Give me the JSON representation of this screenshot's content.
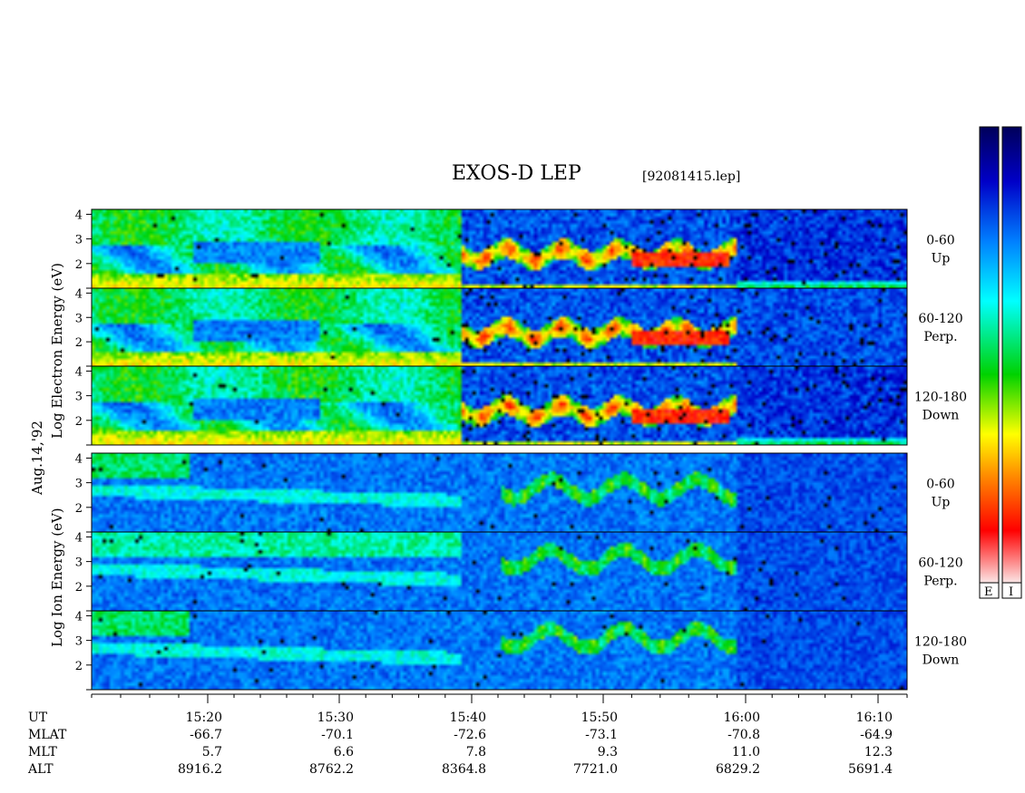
{
  "header": {
    "title": "EXOS-D LEP",
    "file": "[92081415.lep]"
  },
  "date_label": "Aug.14,'92",
  "ylabels": {
    "electron": "Log  Electron  Energy  (eV)",
    "ion": "Log  Ion  Energy  (eV)"
  },
  "colorbars": {
    "left_letter": "E",
    "right_letter": "I"
  },
  "chart_data": {
    "type": "heatmap",
    "title": "EXOS-D LEP",
    "subtitle": "[92081415.lep]",
    "x_axis": {
      "label": "UT",
      "ticks": [
        "15:20",
        "15:30",
        "15:40",
        "15:50",
        "16:00",
        "16:10"
      ],
      "range_minutes_utc": [
        "15:12",
        "16:12"
      ]
    },
    "y_axis": {
      "ticks": [
        "2",
        "3",
        "4"
      ],
      "range": [
        1,
        4.2
      ],
      "scale": "log energy (eV)"
    },
    "panels": [
      {
        "species": "Electron",
        "angle": "0-60",
        "direction": "Up"
      },
      {
        "species": "Electron",
        "angle": "60-120",
        "direction": "Perp."
      },
      {
        "species": "Electron",
        "angle": "120-180",
        "direction": "Down"
      },
      {
        "species": "Ion",
        "angle": "0-60",
        "direction": "Up"
      },
      {
        "species": "Ion",
        "angle": "60-120",
        "direction": "Perp."
      },
      {
        "species": "Ion",
        "angle": "120-180",
        "direction": "Down"
      }
    ],
    "ephemeris": [
      {
        "name": "MLAT",
        "values": [
          "-66.7",
          "-70.1",
          "-72.6",
          "-73.1",
          "-70.8",
          "-64.9"
        ]
      },
      {
        "name": "MLT",
        "values": [
          "5.7",
          "6.6",
          "7.8",
          "9.3",
          "11.0",
          "12.3"
        ]
      },
      {
        "name": "ALT",
        "values": [
          "8916.2",
          "8762.2",
          "8364.8",
          "7721.0",
          "6829.2",
          "5691.4"
        ]
      }
    ],
    "colormap": [
      "#fbf2f2",
      "#ff0000",
      "#ff8c00",
      "#ffff00",
      "#00d200",
      "#00ffff",
      "#0080ff",
      "#0000c8",
      "#00005a"
    ],
    "grid": false
  }
}
